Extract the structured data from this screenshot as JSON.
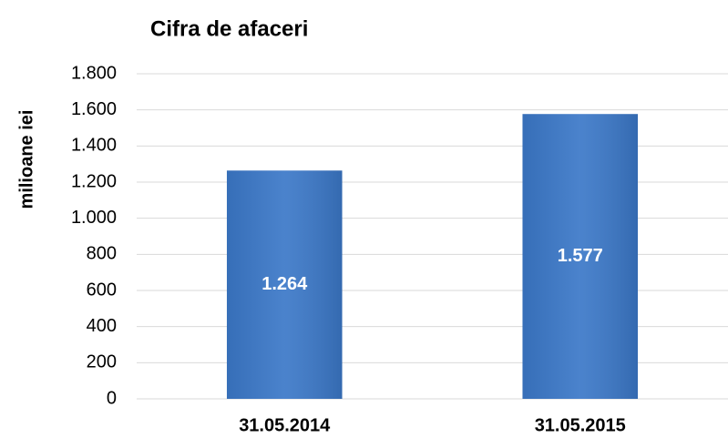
{
  "chart_data": {
    "type": "bar",
    "title": "Cifra de afaceri",
    "y_label": "milioane iei",
    "categories": [
      "31.05.2014",
      "31.05.2015"
    ],
    "values": [
      1264,
      1577
    ],
    "value_labels": [
      "1.264",
      "1.577"
    ],
    "color": "#3b78c8",
    "ylim": [
      0,
      1800
    ],
    "yticks": [
      0,
      200,
      400,
      600,
      800,
      {
        "value": 1000,
        "label": "1.000"
      },
      {
        "value": 1200,
        "label": "1.200"
      },
      {
        "value": 1400,
        "label": "1.400"
      },
      {
        "value": 1600,
        "label": "1.600"
      },
      {
        "value": 1800,
        "label": "1.800"
      }
    ],
    "grid": true
  }
}
